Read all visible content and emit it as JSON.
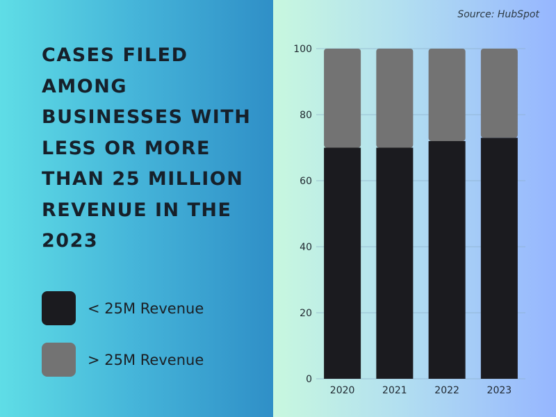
{
  "title": "Cases filed among businesses with less or more than 25 million revenue in the 2023",
  "source": "Source: HubSpot",
  "colors": {
    "under_25m": "#1b1b1f",
    "over_25m": "#737373",
    "gridline": "#8aaec8"
  },
  "chart_data": {
    "type": "bar",
    "stacked": true,
    "categories": [
      "2020",
      "2021",
      "2022",
      "2023"
    ],
    "series": [
      {
        "name": "< 25M Revenue",
        "values": [
          70,
          70,
          72,
          73
        ],
        "color": "#1b1b1f"
      },
      {
        "name": "> 25M Revenue",
        "values": [
          30,
          30,
          28,
          27
        ],
        "color": "#737373"
      }
    ],
    "ylim": [
      0,
      100
    ],
    "yticks": [
      0,
      20,
      40,
      60,
      80,
      100
    ],
    "xlabel": "",
    "ylabel": "",
    "grid": true,
    "legend_placement": "left"
  }
}
